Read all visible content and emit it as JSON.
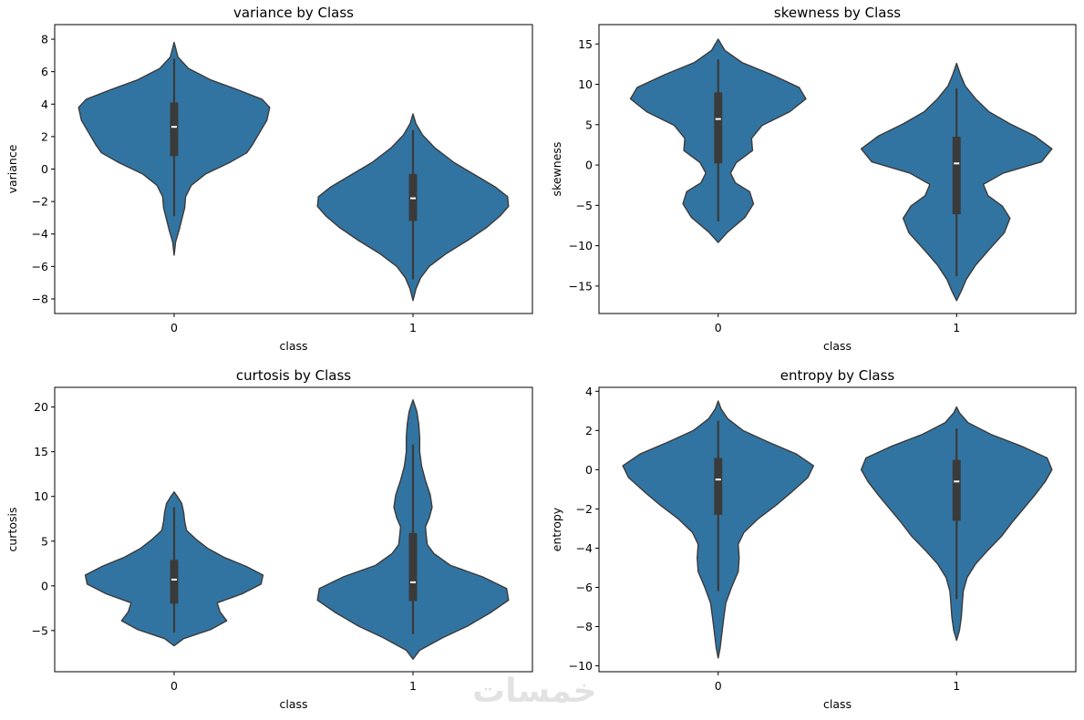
{
  "colors": {
    "violin_fill": "#3274a1",
    "violin_edge": "#3a3a3a",
    "box": "#3a3a3a",
    "median": "#ffffff"
  },
  "watermark": "خمسات",
  "chart_data": [
    {
      "type": "violin",
      "title": "variance by Class",
      "xlabel": "class",
      "ylabel": "variance",
      "categories": [
        "0",
        "1"
      ],
      "ylim": [
        -8.9,
        8.9
      ],
      "yticks": [
        -8,
        -6,
        -4,
        -2,
        0,
        2,
        4,
        6,
        8
      ],
      "violins": [
        {
          "category": "0",
          "range": [
            -5.3,
            7.8
          ],
          "whisker": [
            -2.9,
            6.8
          ],
          "q1": 0.8,
          "median": 2.6,
          "q3": 4.1,
          "profile": [
            [
              -5.3,
              0
            ],
            [
              -4.5,
              0.015
            ],
            [
              -3.8,
              0.05
            ],
            [
              -3.1,
              0.08
            ],
            [
              -2.4,
              0.11
            ],
            [
              -1.7,
              0.12
            ],
            [
              -1.0,
              0.18
            ],
            [
              -0.3,
              0.33
            ],
            [
              0.4,
              0.58
            ],
            [
              1.0,
              0.76
            ],
            [
              1.5,
              0.82
            ],
            [
              2.2,
              0.89
            ],
            [
              3.0,
              0.97
            ],
            [
              3.8,
              1.0
            ],
            [
              4.3,
              0.92
            ],
            [
              4.9,
              0.66
            ],
            [
              5.5,
              0.38
            ],
            [
              6.2,
              0.15
            ],
            [
              6.9,
              0.04
            ],
            [
              7.8,
              0
            ]
          ]
        },
        {
          "category": "1",
          "range": [
            -8.1,
            3.4
          ],
          "whisker": [
            -6.8,
            2.4
          ],
          "q1": -3.2,
          "median": -1.8,
          "q3": -0.3,
          "profile": [
            [
              -8.1,
              0
            ],
            [
              -7.4,
              0.03
            ],
            [
              -6.7,
              0.08
            ],
            [
              -6.0,
              0.17
            ],
            [
              -5.2,
              0.35
            ],
            [
              -4.4,
              0.57
            ],
            [
              -3.6,
              0.77
            ],
            [
              -2.9,
              0.91
            ],
            [
              -2.3,
              1.0
            ],
            [
              -1.7,
              0.99
            ],
            [
              -1.1,
              0.86
            ],
            [
              -0.4,
              0.66
            ],
            [
              0.4,
              0.43
            ],
            [
              1.3,
              0.23
            ],
            [
              2.1,
              0.1
            ],
            [
              2.8,
              0.03
            ],
            [
              3.4,
              0
            ]
          ]
        }
      ]
    },
    {
      "type": "violin",
      "title": "skewness by Class",
      "xlabel": "class",
      "ylabel": "skewness",
      "categories": [
        "0",
        "1"
      ],
      "ylim": [
        -18.4,
        17.4
      ],
      "yticks": [
        -15,
        -10,
        -5,
        0,
        5,
        10,
        15
      ],
      "violins": [
        {
          "category": "0",
          "range": [
            -9.6,
            15.6
          ],
          "whisker": [
            -7.0,
            13.1
          ],
          "q1": 0.2,
          "median": 5.7,
          "q3": 9.0,
          "profile": [
            [
              -9.6,
              0
            ],
            [
              -8.3,
              0.1
            ],
            [
              -6.5,
              0.28
            ],
            [
              -4.8,
              0.37
            ],
            [
              -3.3,
              0.33
            ],
            [
              -2.2,
              0.18
            ],
            [
              -1.0,
              0.13
            ],
            [
              0.3,
              0.19
            ],
            [
              1.8,
              0.36
            ],
            [
              3.3,
              0.35
            ],
            [
              4.9,
              0.46
            ],
            [
              6.6,
              0.75
            ],
            [
              8.2,
              0.92
            ],
            [
              9.6,
              0.85
            ],
            [
              11.2,
              0.56
            ],
            [
              12.7,
              0.25
            ],
            [
              14.2,
              0.07
            ],
            [
              15.6,
              0
            ]
          ]
        },
        {
          "category": "1",
          "range": [
            -16.8,
            12.6
          ],
          "whisker": [
            -13.8,
            9.5
          ],
          "q1": -6.1,
          "median": 0.2,
          "q3": 3.5,
          "profile": [
            [
              -16.8,
              0
            ],
            [
              -15.6,
              0.05
            ],
            [
              -14.2,
              0.1
            ],
            [
              -12.4,
              0.2
            ],
            [
              -10.5,
              0.34
            ],
            [
              -8.4,
              0.5
            ],
            [
              -6.6,
              0.56
            ],
            [
              -5.1,
              0.48
            ],
            [
              -3.8,
              0.33
            ],
            [
              -2.4,
              0.28
            ],
            [
              -1.0,
              0.49
            ],
            [
              0.4,
              0.89
            ],
            [
              2.0,
              1.0
            ],
            [
              3.6,
              0.82
            ],
            [
              5.1,
              0.56
            ],
            [
              6.6,
              0.34
            ],
            [
              8.2,
              0.2
            ],
            [
              9.8,
              0.09
            ],
            [
              11.2,
              0.04
            ],
            [
              12.6,
              0
            ]
          ]
        }
      ]
    },
    {
      "type": "violin",
      "title": "curtosis by Class",
      "xlabel": "class",
      "ylabel": "curtosis",
      "categories": [
        "0",
        "1"
      ],
      "ylim": [
        -9.6,
        22.2
      ],
      "yticks": [
        -5,
        0,
        5,
        10,
        15,
        20
      ],
      "violins": [
        {
          "category": "0",
          "range": [
            -6.7,
            10.5
          ],
          "whisker": [
            -5.2,
            8.8
          ],
          "q1": -2.0,
          "median": 0.7,
          "q3": 2.9,
          "profile": [
            [
              -6.7,
              0
            ],
            [
              -5.9,
              0.1
            ],
            [
              -4.9,
              0.38
            ],
            [
              -3.9,
              0.55
            ],
            [
              -2.9,
              0.48
            ],
            [
              -1.9,
              0.45
            ],
            [
              -0.9,
              0.71
            ],
            [
              0.2,
              0.91
            ],
            [
              1.2,
              0.93
            ],
            [
              2.2,
              0.75
            ],
            [
              3.2,
              0.52
            ],
            [
              4.2,
              0.35
            ],
            [
              5.2,
              0.23
            ],
            [
              6.2,
              0.13
            ],
            [
              7.2,
              0.11
            ],
            [
              8.2,
              0.1
            ],
            [
              9.2,
              0.08
            ],
            [
              9.9,
              0.04
            ],
            [
              10.5,
              0
            ]
          ]
        },
        {
          "category": "1",
          "range": [
            -8.2,
            20.8
          ],
          "whisker": [
            -5.4,
            15.8
          ],
          "q1": -1.7,
          "median": 0.4,
          "q3": 5.9,
          "profile": [
            [
              -8.2,
              0
            ],
            [
              -7.2,
              0.07
            ],
            [
              -5.8,
              0.31
            ],
            [
              -4.5,
              0.57
            ],
            [
              -3.0,
              0.81
            ],
            [
              -1.6,
              1.0
            ],
            [
              -0.3,
              0.98
            ],
            [
              1.0,
              0.73
            ],
            [
              2.3,
              0.39
            ],
            [
              3.6,
              0.22
            ],
            [
              4.6,
              0.15
            ],
            [
              5.5,
              0.14
            ],
            [
              6.6,
              0.13
            ],
            [
              7.6,
              0.17
            ],
            [
              8.8,
              0.2
            ],
            [
              10.2,
              0.18
            ],
            [
              11.8,
              0.13
            ],
            [
              13.4,
              0.09
            ],
            [
              15.0,
              0.07
            ],
            [
              16.6,
              0.07
            ],
            [
              18.1,
              0.06
            ],
            [
              19.5,
              0.04
            ],
            [
              20.8,
              0
            ]
          ]
        }
      ]
    },
    {
      "type": "violin",
      "title": "entropy by Class",
      "xlabel": "class",
      "ylabel": "entropy",
      "categories": [
        "0",
        "1"
      ],
      "ylim": [
        -10.3,
        4.2
      ],
      "yticks": [
        -10,
        -8,
        -6,
        -4,
        -2,
        0,
        2,
        4
      ],
      "violins": [
        {
          "category": "0",
          "range": [
            -9.6,
            3.5
          ],
          "whisker": [
            -6.2,
            2.5
          ],
          "q1": -2.3,
          "median": -0.5,
          "q3": 0.6,
          "profile": [
            [
              -9.6,
              0
            ],
            [
              -9.1,
              0.02
            ],
            [
              -8.3,
              0.04
            ],
            [
              -7.5,
              0.06
            ],
            [
              -6.8,
              0.08
            ],
            [
              -6.0,
              0.14
            ],
            [
              -5.2,
              0.21
            ],
            [
              -4.5,
              0.22
            ],
            [
              -3.8,
              0.21
            ],
            [
              -3.2,
              0.27
            ],
            [
              -2.5,
              0.42
            ],
            [
              -1.8,
              0.61
            ],
            [
              -1.1,
              0.78
            ],
            [
              -0.4,
              0.94
            ],
            [
              0.2,
              1.0
            ],
            [
              0.8,
              0.82
            ],
            [
              1.4,
              0.53
            ],
            [
              2.0,
              0.26
            ],
            [
              2.6,
              0.1
            ],
            [
              3.1,
              0.03
            ],
            [
              3.5,
              0
            ]
          ]
        },
        {
          "category": "1",
          "range": [
            -8.7,
            3.2
          ],
          "whisker": [
            -6.6,
            2.1
          ],
          "q1": -2.6,
          "median": -0.6,
          "q3": 0.5,
          "profile": [
            [
              -8.7,
              0
            ],
            [
              -8.2,
              0.03
            ],
            [
              -7.5,
              0.05
            ],
            [
              -6.8,
              0.06
            ],
            [
              -6.2,
              0.07
            ],
            [
              -5.5,
              0.11
            ],
            [
              -4.8,
              0.2
            ],
            [
              -4.1,
              0.33
            ],
            [
              -3.4,
              0.47
            ],
            [
              -2.7,
              0.58
            ],
            [
              -2.0,
              0.7
            ],
            [
              -1.3,
              0.82
            ],
            [
              -0.6,
              0.93
            ],
            [
              0.0,
              1.0
            ],
            [
              0.6,
              0.95
            ],
            [
              1.2,
              0.68
            ],
            [
              1.8,
              0.36
            ],
            [
              2.4,
              0.12
            ],
            [
              2.9,
              0.03
            ],
            [
              3.2,
              0
            ]
          ]
        }
      ]
    }
  ]
}
